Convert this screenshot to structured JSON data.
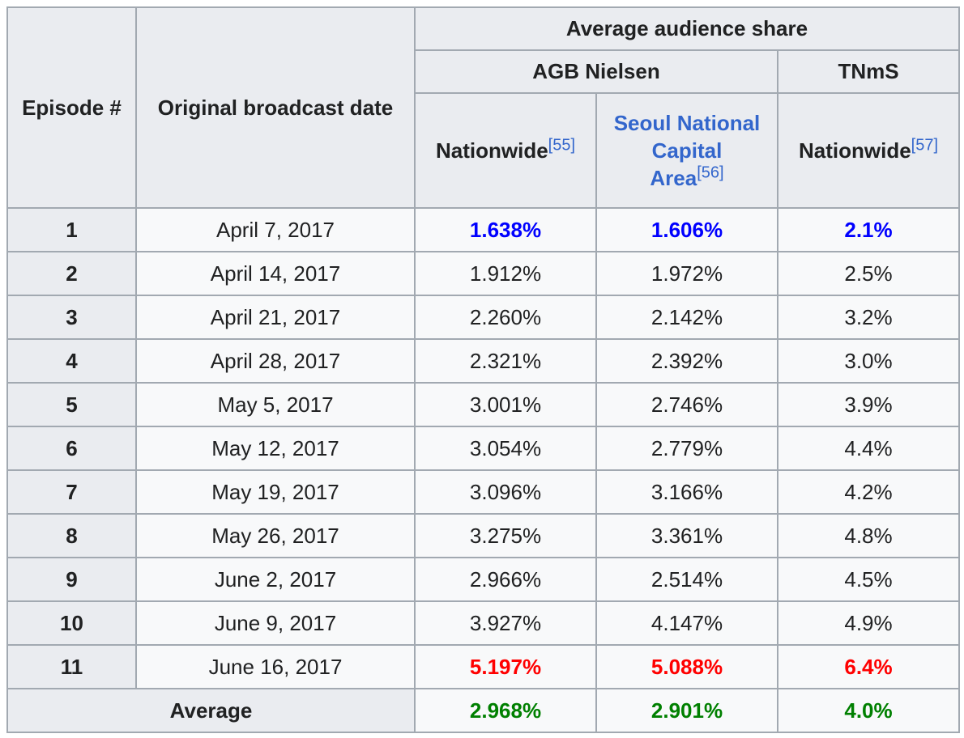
{
  "table": {
    "headers": {
      "episode": "Episode #",
      "date": "Original broadcast date",
      "average_share": "Average audience share",
      "agb": "AGB Nielsen",
      "tnms": "TNmS",
      "agb_nationwide": "Nationwide",
      "agb_nationwide_ref": "[55]",
      "seoul_line1": "Seoul National",
      "seoul_line2": "Capital",
      "seoul_line3": "Area",
      "seoul_ref": "[56]",
      "tnms_nationwide": "Nationwide",
      "tnms_nationwide_ref": "[57]"
    },
    "rows": [
      {
        "episode": "1",
        "date": "April 7, 2017",
        "agb_nationwide": "1.638%",
        "agb_seoul": "1.606%",
        "tnms": "2.1%"
      },
      {
        "episode": "2",
        "date": "April 14, 2017",
        "agb_nationwide": "1.912%",
        "agb_seoul": "1.972%",
        "tnms": "2.5%"
      },
      {
        "episode": "3",
        "date": "April 21, 2017",
        "agb_nationwide": "2.260%",
        "agb_seoul": "2.142%",
        "tnms": "3.2%"
      },
      {
        "episode": "4",
        "date": "April 28, 2017",
        "agb_nationwide": "2.321%",
        "agb_seoul": "2.392%",
        "tnms": "3.0%"
      },
      {
        "episode": "5",
        "date": "May 5, 2017",
        "agb_nationwide": "3.001%",
        "agb_seoul": "2.746%",
        "tnms": "3.9%"
      },
      {
        "episode": "6",
        "date": "May 12, 2017",
        "agb_nationwide": "3.054%",
        "agb_seoul": "2.779%",
        "tnms": "4.4%"
      },
      {
        "episode": "7",
        "date": "May 19, 2017",
        "agb_nationwide": "3.096%",
        "agb_seoul": "3.166%",
        "tnms": "4.2%"
      },
      {
        "episode": "8",
        "date": "May 26, 2017",
        "agb_nationwide": "3.275%",
        "agb_seoul": "3.361%",
        "tnms": "4.8%"
      },
      {
        "episode": "9",
        "date": "June 2, 2017",
        "agb_nationwide": "2.966%",
        "agb_seoul": "2.514%",
        "tnms": "4.5%"
      },
      {
        "episode": "10",
        "date": "June 9, 2017",
        "agb_nationwide": "3.927%",
        "agb_seoul": "4.147%",
        "tnms": "4.9%"
      },
      {
        "episode": "11",
        "date": "June 16, 2017",
        "agb_nationwide": "5.197%",
        "agb_seoul": "5.088%",
        "tnms": "6.4%"
      }
    ],
    "average": {
      "label": "Average",
      "agb_nationwide": "2.968%",
      "agb_seoul": "2.901%",
      "tnms": "4.0%"
    },
    "colors": {
      "lowest": "#0000ff",
      "highest": "#ff0000",
      "average": "#008000",
      "link": "#3366cc"
    }
  }
}
